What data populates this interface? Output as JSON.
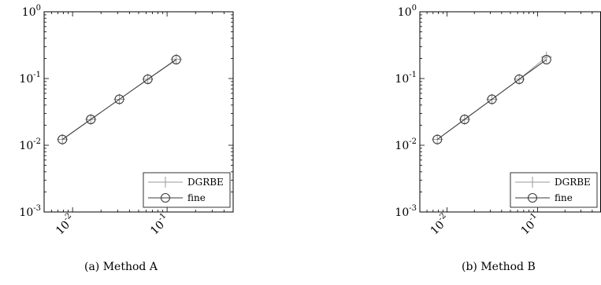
{
  "chart_data": [
    {
      "type": "line",
      "caption": "(a) Method A",
      "xscale": "log",
      "yscale": "log",
      "xlim": [
        0.005,
        0.5
      ],
      "ylim": [
        0.001,
        1
      ],
      "x_ticks": [
        0.01,
        0.1
      ],
      "x_tick_labels": [
        {
          "base": "10",
          "exp": "-2"
        },
        {
          "base": "10",
          "exp": "-1"
        }
      ],
      "y_ticks": [
        0.001,
        0.01,
        0.1,
        1
      ],
      "y_tick_labels": [
        {
          "base": "10",
          "exp": "-3"
        },
        {
          "base": "10",
          "exp": "-2"
        },
        {
          "base": "10",
          "exp": "-1"
        },
        {
          "base": "10",
          "exp": "0"
        }
      ],
      "legend": "bottom-right",
      "grid": false,
      "series": [
        {
          "name": "DGRBE",
          "marker": "plus",
          "color": "#9a9a9a",
          "x": [
            0.0078,
            0.0156,
            0.03125,
            0.0625,
            0.125
          ],
          "y": [
            0.0122,
            0.0244,
            0.0488,
            0.0975,
            0.195
          ]
        },
        {
          "name": "fine",
          "marker": "circle",
          "color": "#3a3a3a",
          "x": [
            0.0078,
            0.0156,
            0.03125,
            0.0625,
            0.125
          ],
          "y": [
            0.0122,
            0.0244,
            0.0488,
            0.0975,
            0.192
          ]
        }
      ]
    },
    {
      "type": "line",
      "caption": "(b) Method B",
      "xscale": "log",
      "yscale": "log",
      "xlim": [
        0.005,
        0.5
      ],
      "ylim": [
        0.001,
        1
      ],
      "x_ticks": [
        0.01,
        0.1
      ],
      "x_tick_labels": [
        {
          "base": "10",
          "exp": "-2"
        },
        {
          "base": "10",
          "exp": "-1"
        }
      ],
      "y_ticks": [
        0.001,
        0.01,
        0.1,
        1
      ],
      "y_tick_labels": [
        {
          "base": "10",
          "exp": "-3"
        },
        {
          "base": "10",
          "exp": "-2"
        },
        {
          "base": "10",
          "exp": "-1"
        },
        {
          "base": "10",
          "exp": "0"
        }
      ],
      "legend": "bottom-right",
      "grid": false,
      "series": [
        {
          "name": "DGRBE",
          "marker": "plus",
          "color": "#9a9a9a",
          "x": [
            0.0078,
            0.0156,
            0.03125,
            0.0625,
            0.125
          ],
          "y": [
            0.0122,
            0.0244,
            0.0488,
            0.0975,
            0.21
          ]
        },
        {
          "name": "fine",
          "marker": "circle",
          "color": "#3a3a3a",
          "x": [
            0.0078,
            0.0156,
            0.03125,
            0.0625,
            0.125
          ],
          "y": [
            0.0122,
            0.0244,
            0.0488,
            0.0975,
            0.192
          ]
        }
      ]
    }
  ]
}
